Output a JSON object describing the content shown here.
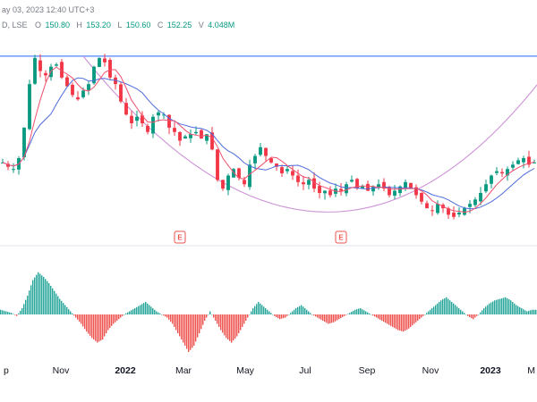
{
  "header": {
    "line1": "ay 03, 2023 12:40 UTC+3",
    "symbol": "D, LSE",
    "ohlc": [
      {
        "label": "O",
        "value": "150.80"
      },
      {
        "label": "H",
        "value": "153.20"
      },
      {
        "label": "L",
        "value": "150.60"
      },
      {
        "label": "C",
        "value": "152.25"
      },
      {
        "label": "V",
        "value": "4.048M"
      }
    ]
  },
  "earnings_marker_label": "E",
  "colors": {
    "up": "#089981",
    "down": "#f23645",
    "ma_fast": "#f0506e",
    "ma_slow": "#4d6bdc",
    "arc": "#ce93d8",
    "hline": "#2962ff",
    "osc_up": "#26a69a",
    "osc_down": "#ef5350"
  },
  "chart_data": {
    "type": "candlestick",
    "x_axis_labels": [
      {
        "label": "p",
        "major": false
      },
      {
        "label": "Nov",
        "major": false
      },
      {
        "label": "2022",
        "major": true
      },
      {
        "label": "Mar",
        "major": false
      },
      {
        "label": "May",
        "major": false
      },
      {
        "label": "Jul",
        "major": false
      },
      {
        "label": "Sep",
        "major": false
      },
      {
        "label": "Nov",
        "major": false
      },
      {
        "label": "2023",
        "major": true
      },
      {
        "label": "M",
        "major": false
      }
    ],
    "price_series": [
      152,
      150,
      149,
      154,
      168,
      188,
      200,
      194,
      192,
      196,
      197,
      191,
      187,
      183,
      181,
      185,
      188,
      196,
      200,
      198,
      191,
      188,
      180,
      174,
      170,
      173,
      170,
      166,
      173,
      175,
      174,
      168,
      166,
      162,
      164,
      165,
      166,
      163,
      165,
      158,
      144,
      140,
      146,
      149,
      145,
      142,
      151,
      155,
      159,
      155,
      152,
      150,
      147,
      149,
      146,
      143,
      142,
      144,
      140,
      138,
      139,
      137,
      140,
      139,
      142,
      144,
      140,
      141,
      139,
      141,
      142,
      140,
      137,
      139,
      141,
      143,
      140,
      137,
      134,
      131,
      130,
      133,
      131,
      128,
      127,
      129,
      131,
      133,
      135,
      138,
      142,
      146,
      148,
      147,
      149,
      151,
      153,
      154,
      151,
      152
    ],
    "reference_lines": [
      "horizontal resistance",
      "rounded-bottom arc"
    ],
    "earnings_markers": 2,
    "indicator": {
      "type": "histogram oscillator",
      "values": [
        3,
        2,
        1,
        -1,
        4,
        12,
        22,
        27,
        24,
        20,
        15,
        10,
        6,
        2,
        -2,
        -6,
        -11,
        -15,
        -18,
        -16,
        -10,
        -6,
        -3,
        0,
        2,
        4,
        6,
        8,
        5,
        2,
        0,
        -2,
        -6,
        -12,
        -18,
        -24,
        -20,
        -12,
        -4,
        2,
        -4,
        -10,
        -15,
        -18,
        -14,
        -8,
        -2,
        4,
        8,
        5,
        2,
        -1,
        -3,
        -2,
        1,
        4,
        6,
        3,
        0,
        -2,
        -4,
        -6,
        -5,
        -3,
        -1,
        1,
        3,
        4,
        2,
        0,
        -2,
        -4,
        -6,
        -8,
        -10,
        -11,
        -9,
        -6,
        -3,
        0,
        3,
        6,
        9,
        11,
        8,
        5,
        2,
        -1,
        -3,
        0,
        4,
        7,
        9,
        10,
        11,
        9,
        6,
        4,
        2,
        3
      ]
    }
  }
}
